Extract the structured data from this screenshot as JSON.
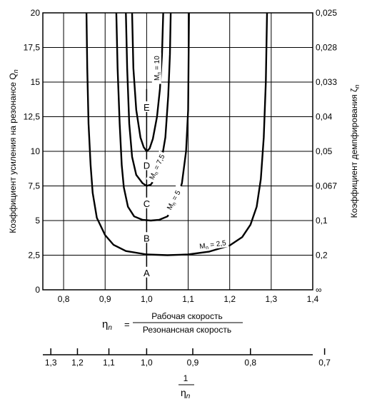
{
  "chart_data": {
    "type": "line",
    "title": "",
    "xlabel": {
      "symbol": "η",
      "subscript": "n",
      "equals": "=",
      "numerator": "Рабочая скорость",
      "denominator": "Резонансная скорость"
    },
    "ylabel": {
      "main": "Коэффициент усиления на резонансе Q",
      "subscript": "n"
    },
    "y2label": {
      "main": "Коэффициент демпфирования ζ",
      "subscript": "n"
    },
    "x2label": {
      "numerator": "1",
      "denominator_symbol": "η",
      "denominator_subscript": "n"
    },
    "xlim": [
      0.75,
      1.4
    ],
    "ylim": [
      0,
      20
    ],
    "grid": true,
    "x_ticks": [
      "0,8",
      "0,9",
      "1,0",
      "1,1",
      "1,2",
      "1,3",
      "1,4"
    ],
    "x_tick_values": [
      0.8,
      0.9,
      1.0,
      1.1,
      1.2,
      1.3,
      1.4
    ],
    "y_ticks": [
      "0",
      "2,5",
      "5",
      "7,5",
      "10",
      "12,5",
      "15",
      "17,5",
      "20"
    ],
    "y_tick_values": [
      0,
      2.5,
      5,
      7.5,
      10,
      12.5,
      15,
      17.5,
      20
    ],
    "y2_ticks": [
      "∞",
      "0,2",
      "0,1",
      "0,067",
      "0,05",
      "0,04",
      "0,033",
      "0,028",
      "0,025"
    ],
    "x2_ticks": [
      "1,3",
      "1,2",
      "1,1",
      "1,0",
      "0,9",
      "0,8",
      "0,7"
    ],
    "x2_tick_values": [
      1.3,
      1.2,
      1.1,
      1.0,
      0.9,
      0.8,
      0.7
    ],
    "zone_labels": [
      {
        "text": "A",
        "x": 1.0,
        "y": 1.25
      },
      {
        "text": "B",
        "x": 1.0,
        "y": 3.75
      },
      {
        "text": "C",
        "x": 1.0,
        "y": 6.25
      },
      {
        "text": "D",
        "x": 1.0,
        "y": 9.0
      },
      {
        "text": "E",
        "x": 1.0,
        "y": 13.2
      }
    ],
    "zone_divider": {
      "x": 1.0,
      "y_from": 0,
      "y_to": 14.5
    },
    "series": [
      {
        "label": "M",
        "label_subscript": "n",
        "label_value": "= 2,5",
        "color": "#000000",
        "points": [
          [
            0.855,
            20
          ],
          [
            0.857,
            16
          ],
          [
            0.86,
            12
          ],
          [
            0.865,
            9
          ],
          [
            0.87,
            7
          ],
          [
            0.88,
            5.2
          ],
          [
            0.9,
            3.95
          ],
          [
            0.92,
            3.25
          ],
          [
            0.95,
            2.8
          ],
          [
            1.0,
            2.55
          ],
          [
            1.05,
            2.5
          ],
          [
            1.1,
            2.55
          ],
          [
            1.15,
            2.75
          ],
          [
            1.2,
            3.2
          ],
          [
            1.23,
            3.8
          ],
          [
            1.25,
            4.7
          ],
          [
            1.265,
            6
          ],
          [
            1.275,
            8
          ],
          [
            1.282,
            11
          ],
          [
            1.287,
            15
          ],
          [
            1.29,
            20
          ]
        ]
      },
      {
        "label": "M",
        "label_subscript": "n",
        "label_value": "= 5",
        "color": "#000000",
        "points": [
          [
            0.927,
            20
          ],
          [
            0.93,
            16
          ],
          [
            0.935,
            12
          ],
          [
            0.94,
            9
          ],
          [
            0.945,
            7.4
          ],
          [
            0.955,
            6
          ],
          [
            0.97,
            5.3
          ],
          [
            0.99,
            5.05
          ],
          [
            1.01,
            5.0
          ],
          [
            1.03,
            5.05
          ],
          [
            1.05,
            5.3
          ],
          [
            1.07,
            6.2
          ],
          [
            1.085,
            7.7
          ],
          [
            1.095,
            10
          ],
          [
            1.1,
            13
          ],
          [
            1.102,
            20
          ]
        ]
      },
      {
        "label": "M",
        "label_subscript": "n",
        "label_value": "= 7,5",
        "color": "#000000",
        "points": [
          [
            0.95,
            20
          ],
          [
            0.953,
            16
          ],
          [
            0.958,
            12
          ],
          [
            0.965,
            9.6
          ],
          [
            0.975,
            8.3
          ],
          [
            0.99,
            7.7
          ],
          [
            1.0,
            7.5
          ],
          [
            1.01,
            7.6
          ],
          [
            1.02,
            8.0
          ],
          [
            1.035,
            9.2
          ],
          [
            1.045,
            11
          ],
          [
            1.052,
            14
          ],
          [
            1.056,
            17
          ],
          [
            1.058,
            20
          ]
        ]
      },
      {
        "label": "M",
        "label_subscript": "n",
        "label_value": "= 10",
        "color": "#000000",
        "points": [
          [
            0.965,
            20
          ],
          [
            0.968,
            16
          ],
          [
            0.975,
            13
          ],
          [
            0.985,
            11
          ],
          [
            0.993,
            10.3
          ],
          [
            1.0,
            10.0
          ],
          [
            1.007,
            10.2
          ],
          [
            1.015,
            10.9
          ],
          [
            1.025,
            12.5
          ],
          [
            1.032,
            14.5
          ],
          [
            1.037,
            17
          ],
          [
            1.04,
            20
          ]
        ]
      }
    ],
    "series_labels": [
      {
        "series": 0,
        "x": 1.16,
        "y": 3.1,
        "rotate": -8
      },
      {
        "series": 1,
        "x": 1.07,
        "y": 6.4,
        "rotate": -62
      },
      {
        "series": 2,
        "x": 1.03,
        "y": 8.8,
        "rotate": -65
      },
      {
        "series": 3,
        "x": 1.03,
        "y": 16.0,
        "rotate": -90
      }
    ]
  }
}
